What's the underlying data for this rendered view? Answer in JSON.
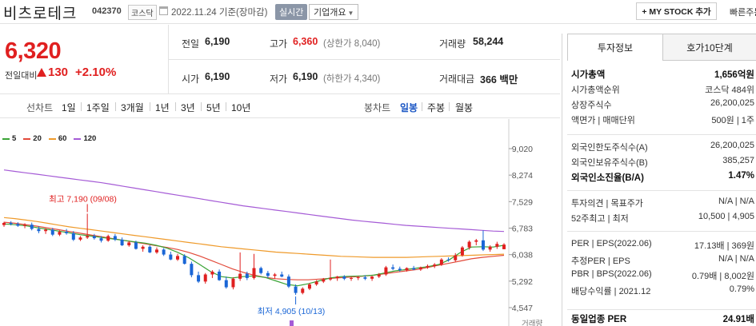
{
  "header": {
    "company_name": "비츠로테크",
    "ticker": "042370",
    "market": "코스닥",
    "base_date": "2022.11.24  기준(장마감)",
    "realtime_label": "실시간",
    "company_overview_label": "기업개요",
    "mystock_label": "+ MY STOCK 추가",
    "quick_order_label": "빠른주문"
  },
  "summary": {
    "current_price": "6,320",
    "change_label": "전일대비",
    "change_amount": "130",
    "change_rate": "+2.10%",
    "prev_close_label": "전일",
    "prev_close": "6,190",
    "high_label": "고가",
    "high": "6,360",
    "upper_limit": "(상한가 8,040)",
    "volume_label": "거래량",
    "volume": "58,244",
    "open_label": "시가",
    "open": "6,190",
    "low_label": "저가",
    "low": "6,190",
    "lower_limit": "(하한가 4,340)",
    "amount_label": "거래대금",
    "amount": "366 백만"
  },
  "controls": {
    "line_chart_label": "선차트",
    "periods": [
      "1일",
      "1주일",
      "3개월",
      "1년",
      "3년",
      "5년",
      "10년"
    ],
    "candle_chart_label": "봉차트",
    "candle_periods": [
      "일봉",
      "주봉",
      "월봉"
    ],
    "active_candle_period": "일봉"
  },
  "colors": {
    "up": "#e02020",
    "down": "#1a66d6",
    "ma5": "#3aa335",
    "ma20": "#e24a3a",
    "ma60": "#ef9a2a",
    "ma120": "#a55bd6"
  },
  "chart_data": {
    "type": "candlestick",
    "legend": [
      "5",
      "20",
      "60",
      "120"
    ],
    "y_ticks": [
      "9,020",
      "8,274",
      "7,529",
      "6,783",
      "6,038",
      "5,292",
      "4,547"
    ],
    "ylim": [
      4547,
      9020
    ],
    "high_annotation": "최고 7,190 (09/08)",
    "low_annotation": "최저 4,905 (10/13)",
    "volume_label": "거래량",
    "candles": [
      [
        6870,
        6960,
        6820,
        6930
      ],
      [
        6930,
        6980,
        6860,
        6900
      ],
      [
        6900,
        6950,
        6820,
        6850
      ],
      [
        6850,
        6920,
        6780,
        6880
      ],
      [
        6880,
        6940,
        6720,
        6760
      ],
      [
        6760,
        6830,
        6640,
        6700
      ],
      [
        6700,
        6780,
        6620,
        6740
      ],
      [
        6740,
        6790,
        6560,
        6600
      ],
      [
        6600,
        6720,
        6560,
        6680
      ],
      [
        6680,
        6760,
        6600,
        6640
      ],
      [
        6640,
        6700,
        6420,
        6460
      ],
      [
        6460,
        6560,
        6420,
        6520
      ],
      [
        6520,
        7190,
        6480,
        6560
      ],
      [
        6560,
        6620,
        6460,
        6500
      ],
      [
        6500,
        6560,
        6380,
        6430
      ],
      [
        6430,
        6600,
        6400,
        6560
      ],
      [
        6560,
        6620,
        6420,
        6460
      ],
      [
        6460,
        6520,
        6280,
        6300
      ],
      [
        6300,
        6420,
        6260,
        6380
      ],
      [
        6380,
        6430,
        6180,
        6200
      ],
      [
        6200,
        6300,
        6120,
        6260
      ],
      [
        6260,
        6300,
        6080,
        6100
      ],
      [
        6100,
        6240,
        6060,
        6180
      ],
      [
        6180,
        6220,
        6000,
        6040
      ],
      [
        6040,
        6120,
        5880,
        5900
      ],
      [
        5900,
        6060,
        5860,
        6000
      ],
      [
        6000,
        6050,
        5760,
        5780
      ],
      [
        5780,
        5840,
        5400,
        5460
      ],
      [
        5460,
        5560,
        5240,
        5280
      ],
      [
        5280,
        5520,
        5220,
        5480
      ],
      [
        5480,
        5600,
        5380,
        5560
      ],
      [
        5560,
        5620,
        5300,
        5320
      ],
      [
        5320,
        5420,
        5080,
        5120
      ],
      [
        5120,
        5400,
        5060,
        5360
      ],
      [
        5360,
        6100,
        5300,
        5500
      ],
      [
        5500,
        5560,
        5320,
        5380
      ],
      [
        5380,
        6060,
        5340,
        5660
      ],
      [
        5660,
        5700,
        5480,
        5520
      ],
      [
        5520,
        5580,
        5380,
        5440
      ],
      [
        5440,
        5520,
        5360,
        5480
      ],
      [
        5480,
        5560,
        5400,
        5420
      ],
      [
        5420,
        5480,
        5100,
        5140
      ],
      [
        5140,
        5200,
        4905,
        4960
      ],
      [
        4960,
        5120,
        4920,
        5080
      ],
      [
        5080,
        5240,
        5040,
        5200
      ],
      [
        5200,
        5320,
        5160,
        5280
      ],
      [
        5280,
        5380,
        5240,
        5340
      ],
      [
        5340,
        5900,
        5300,
        5380
      ],
      [
        5380,
        5440,
        5300,
        5420
      ],
      [
        5420,
        5460,
        5320,
        5360
      ],
      [
        5360,
        5420,
        5300,
        5380
      ],
      [
        5380,
        5440,
        5320,
        5400
      ],
      [
        5400,
        5460,
        5320,
        5360
      ],
      [
        5360,
        5440,
        5300,
        5420
      ],
      [
        5420,
        5520,
        5380,
        5480
      ],
      [
        5480,
        5720,
        5440,
        5680
      ],
      [
        5680,
        5760,
        5600,
        5640
      ],
      [
        5640,
        5700,
        5560,
        5600
      ],
      [
        5600,
        5680,
        5560,
        5660
      ],
      [
        5660,
        5720,
        5600,
        5620
      ],
      [
        5620,
        5700,
        5580,
        5680
      ],
      [
        5680,
        5760,
        5640,
        5720
      ],
      [
        5720,
        5800,
        5660,
        5760
      ],
      [
        5760,
        5940,
        5720,
        5900
      ],
      [
        5900,
        5960,
        5840,
        5880
      ],
      [
        5880,
        6080,
        5840,
        6020
      ],
      [
        6020,
        6280,
        5980,
        6240
      ],
      [
        6240,
        6440,
        6180,
        6400
      ],
      [
        6400,
        6480,
        6300,
        6440
      ],
      [
        6440,
        6720,
        6140,
        6180
      ],
      [
        6180,
        6300,
        6120,
        6260
      ],
      [
        6260,
        6400,
        6200,
        6340
      ],
      [
        6190,
        6360,
        6190,
        6320
      ]
    ],
    "ma5": [
      6900,
      6880,
      6850,
      6800,
      6750,
      6700,
      6650,
      6600,
      6560,
      6520,
      6480,
      6440,
      6400,
      6360,
      6300,
      6220,
      6100,
      5950,
      5760,
      5560,
      5420,
      5380,
      5420,
      5440,
      5400,
      5300,
      5200,
      5160,
      5220,
      5300,
      5380,
      5420,
      5430,
      5440,
      5460,
      5520,
      5580,
      5620,
      5660,
      5700,
      5760,
      5900,
      6100,
      6250,
      6260,
      6250,
      6300
    ],
    "ma20": [
      6950,
      6920,
      6880,
      6840,
      6790,
      6740,
      6690,
      6640,
      6590,
      6540,
      6490,
      6440,
      6390,
      6340,
      6290,
      6240,
      6180,
      6100,
      6000,
      5880,
      5760,
      5640,
      5540,
      5460,
      5400,
      5360,
      5340,
      5330,
      5330,
      5350,
      5370,
      5390,
      5410,
      5430,
      5460,
      5500,
      5540,
      5580,
      5620,
      5680,
      5740,
      5800,
      5860,
      5920,
      5960,
      5990,
      6020
    ],
    "ma60": [
      7080,
      7050,
      7010,
      6970,
      6920,
      6870,
      6820,
      6780,
      6740,
      6700,
      6660,
      6620,
      6580,
      6540,
      6500,
      6460,
      6420,
      6380,
      6340,
      6300,
      6260,
      6230,
      6200,
      6170,
      6140,
      6110,
      6090,
      6070,
      6050,
      6030,
      6010,
      5990,
      5980,
      5970,
      5960,
      5960,
      5960,
      5960,
      5970,
      5980,
      5990,
      6000,
      6010,
      6020,
      6030,
      6040,
      6050
    ],
    "ma120": [
      8420,
      8380,
      8340,
      8300,
      8260,
      8220,
      8180,
      8140,
      8100,
      8060,
      8010,
      7960,
      7910,
      7860,
      7810,
      7760,
      7710,
      7660,
      7610,
      7560,
      7510,
      7460,
      7410,
      7370,
      7330,
      7290,
      7250,
      7210,
      7170,
      7130,
      7090,
      7050,
      7010,
      6980,
      6950,
      6920,
      6890,
      6860,
      6840,
      6820,
      6800,
      6780,
      6760,
      6740,
      6720,
      6700,
      6690
    ]
  },
  "panel": {
    "tab_invest": "투자정보",
    "tab_hoga": "호가10단계",
    "rows1": [
      {
        "k": "시가총액",
        "v": "1,656억원",
        "bold": true
      },
      {
        "k": "시가총액순위",
        "v": "코스닥 484위"
      },
      {
        "k": "상장주식수",
        "v": "26,200,025"
      },
      {
        "k": "액면가 | 매매단위",
        "v": "500원 | 1주"
      }
    ],
    "rows2": [
      {
        "k": "외국인한도주식수(A)",
        "v": "26,200,025"
      },
      {
        "k": "외국인보유주식수(B)",
        "v": "385,257"
      },
      {
        "k": "외국인소진율(B/A)",
        "v": "1.47%",
        "bold": true
      }
    ],
    "rows3": [
      {
        "k": "투자의견 | 목표주가",
        "v": "N/A | N/A"
      },
      {
        "k": "52주최고 | 최저",
        "v": "10,500 | 4,905"
      }
    ],
    "rows4": [
      {
        "k": "PER | EPS(2022.06)",
        "v": "17.13배 | 369원"
      },
      {
        "k": "추정PER | EPS",
        "v": "N/A | N/A"
      },
      {
        "k": "PBR | BPS(2022.06)",
        "v": "0.79배 | 8,002원"
      },
      {
        "k": "배당수익률 | 2021.12",
        "v": "0.79%"
      }
    ],
    "industry_per_label": "동일업종 PER",
    "industry_per": "24.91배"
  }
}
